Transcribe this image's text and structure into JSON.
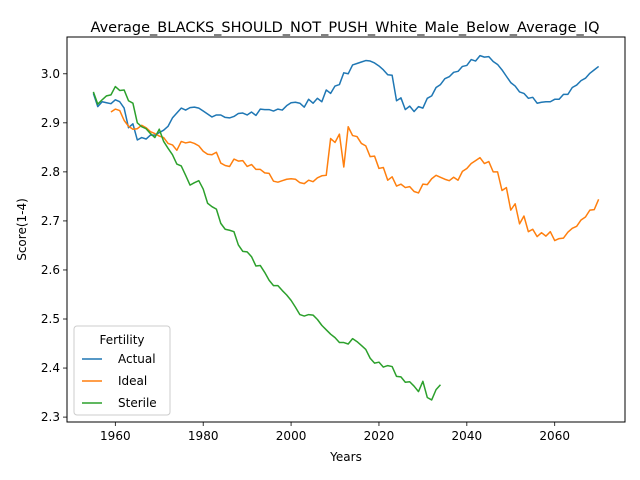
{
  "chart_data": {
    "type": "line",
    "title": "Average_BLACKS_SHOULD_NOT_PUSH_White_Male_Below_Average_IQ",
    "xlabel": "Years",
    "ylabel": "Score(1-4)",
    "xlim": [
      1949,
      2076
    ],
    "ylim": [
      2.29,
      3.075
    ],
    "xticks": [
      1960,
      1980,
      2000,
      2020,
      2040,
      2060
    ],
    "xtick_labels": [
      "1960",
      "1980",
      "2000",
      "2020",
      "2040",
      "2060"
    ],
    "yticks": [
      2.3,
      2.4,
      2.5,
      2.6,
      2.7,
      2.8,
      2.9,
      3.0
    ],
    "ytick_labels": [
      "2.3",
      "2.4",
      "2.5",
      "2.6",
      "2.7",
      "2.8",
      "2.9",
      "3.0"
    ],
    "grid": false,
    "legend": {
      "title": "Fertility",
      "placement": "bottom-left"
    },
    "series": [
      {
        "name": "Actual",
        "color": "#1f77b4",
        "x": [
          1955,
          1956,
          1957,
          1958,
          1959,
          1960,
          1961,
          1962,
          1963,
          1964,
          1965,
          1966,
          1967,
          1968,
          1969,
          1970,
          1971,
          1972,
          1973,
          1974,
          1975,
          1976,
          1977,
          1978,
          1979,
          1980,
          1981,
          1982,
          1983,
          1984,
          1985,
          1986,
          1987,
          1988,
          1989,
          1990,
          1991,
          1992,
          1993,
          1994,
          1995,
          1996,
          1997,
          1998,
          1999,
          2000,
          2001,
          2002,
          2003,
          2004,
          2005,
          2006,
          2007,
          2008,
          2009,
          2010,
          2011,
          2012,
          2013,
          2014,
          2015,
          2016,
          2017,
          2018,
          2019,
          2020,
          2021,
          2022,
          2023,
          2024,
          2025,
          2026,
          2027,
          2028,
          2029,
          2030,
          2031,
          2032,
          2033,
          2034,
          2035,
          2036,
          2037,
          2038,
          2039,
          2040,
          2041,
          2042,
          2043,
          2044,
          2045,
          2046,
          2047,
          2048,
          2049,
          2050,
          2051,
          2052,
          2053,
          2054,
          2055,
          2056,
          2057,
          2058,
          2059,
          2060,
          2061,
          2062,
          2063,
          2064,
          2065,
          2066,
          2067,
          2068,
          2069,
          2070
        ],
        "y": [
          2.96,
          2.933,
          2.943,
          2.941,
          2.939,
          2.947,
          2.943,
          2.93,
          2.89,
          2.898,
          2.865,
          2.87,
          2.867,
          2.875,
          2.875,
          2.88,
          2.885,
          2.893,
          2.91,
          2.92,
          2.93,
          2.926,
          2.931,
          2.932,
          2.93,
          2.924,
          2.918,
          2.912,
          2.916,
          2.916,
          2.911,
          2.91,
          2.913,
          2.919,
          2.92,
          2.916,
          2.922,
          2.915,
          2.928,
          2.927,
          2.927,
          2.924,
          2.928,
          2.926,
          2.935,
          2.941,
          2.942,
          2.94,
          2.932,
          2.948,
          2.94,
          2.95,
          2.943,
          2.967,
          2.96,
          2.975,
          2.978,
          3.002,
          3.0,
          3.018,
          3.021,
          3.024,
          3.027,
          3.026,
          3.022,
          3.016,
          3.008,
          2.998,
          2.997,
          2.945,
          2.951,
          2.927,
          2.934,
          2.923,
          2.933,
          2.93,
          2.95,
          2.955,
          2.972,
          2.978,
          2.99,
          2.994,
          3.003,
          3.005,
          3.015,
          3.017,
          3.029,
          3.026,
          3.037,
          3.034,
          3.035,
          3.025,
          3.019,
          3.008,
          2.995,
          2.982,
          2.975,
          2.963,
          2.96,
          2.95,
          2.952,
          2.94,
          2.942,
          2.943,
          2.943,
          2.948,
          2.948,
          2.958,
          2.958,
          2.972,
          2.977,
          2.986,
          2.991,
          3.001,
          3.008,
          3.015
        ]
      },
      {
        "name": "Ideal",
        "color": "#ff7f0e",
        "x": [
          1959,
          1960,
          1961,
          1962,
          1963,
          1964,
          1965,
          1966,
          1967,
          1968,
          1969,
          1970,
          1971,
          1972,
          1973,
          1974,
          1975,
          1976,
          1977,
          1978,
          1979,
          1980,
          1981,
          1982,
          1983,
          1984,
          1985,
          1986,
          1987,
          1988,
          1989,
          1990,
          1991,
          1992,
          1993,
          1994,
          1995,
          1996,
          1997,
          1998,
          1999,
          2000,
          2001,
          2002,
          2003,
          2004,
          2005,
          2006,
          2007,
          2008,
          2009,
          2010,
          2011,
          2012,
          2013,
          2014,
          2015,
          2016,
          2017,
          2018,
          2019,
          2020,
          2021,
          2022,
          2023,
          2024,
          2025,
          2026,
          2027,
          2028,
          2029,
          2030,
          2031,
          2032,
          2033,
          2034,
          2035,
          2036,
          2037,
          2038,
          2039,
          2040,
          2041,
          2042,
          2043,
          2044,
          2045,
          2046,
          2047,
          2048,
          2049,
          2050,
          2051,
          2052,
          2053,
          2054,
          2055,
          2056,
          2057,
          2058,
          2059,
          2060,
          2061,
          2062,
          2063,
          2064,
          2065,
          2066,
          2067,
          2068,
          2069,
          2070
        ],
        "y": [
          2.922,
          2.928,
          2.925,
          2.905,
          2.893,
          2.887,
          2.888,
          2.895,
          2.89,
          2.882,
          2.878,
          2.873,
          2.87,
          2.858,
          2.855,
          2.844,
          2.862,
          2.859,
          2.861,
          2.858,
          2.853,
          2.842,
          2.836,
          2.835,
          2.84,
          2.818,
          2.813,
          2.811,
          2.826,
          2.822,
          2.823,
          2.811,
          2.815,
          2.805,
          2.805,
          2.798,
          2.797,
          2.781,
          2.779,
          2.782,
          2.785,
          2.786,
          2.785,
          2.778,
          2.776,
          2.783,
          2.78,
          2.788,
          2.792,
          2.793,
          2.868,
          2.86,
          2.877,
          2.81,
          2.892,
          2.874,
          2.872,
          2.858,
          2.853,
          2.831,
          2.832,
          2.807,
          2.809,
          2.783,
          2.79,
          2.771,
          2.775,
          2.768,
          2.77,
          2.76,
          2.757,
          2.775,
          2.774,
          2.786,
          2.793,
          2.789,
          2.785,
          2.782,
          2.789,
          2.783,
          2.801,
          2.807,
          2.817,
          2.823,
          2.829,
          2.817,
          2.821,
          2.8,
          2.8,
          2.762,
          2.768,
          2.722,
          2.735,
          2.694,
          2.71,
          2.678,
          2.683,
          2.668,
          2.676,
          2.669,
          2.678,
          2.66,
          2.664,
          2.665,
          2.677,
          2.685,
          2.689,
          2.702,
          2.708,
          2.722,
          2.723,
          2.744
        ]
      },
      {
        "name": "Sterile",
        "color": "#2ca02c",
        "x": [
          1955,
          1956,
          1957,
          1958,
          1959,
          1960,
          1961,
          1962,
          1963,
          1964,
          1965,
          1966,
          1967,
          1968,
          1969,
          1970,
          1971,
          1972,
          1973,
          1974,
          1975,
          1976,
          1977,
          1978,
          1979,
          1980,
          1981,
          1982,
          1983,
          1984,
          1985,
          1986,
          1987,
          1988,
          1989,
          1990,
          1991,
          1992,
          1993,
          1994,
          1995,
          1996,
          1997,
          1998,
          1999,
          2000,
          2001,
          2002,
          2003,
          2004,
          2005,
          2006,
          2007,
          2008,
          2009,
          2010,
          2011,
          2012,
          2013,
          2014,
          2015,
          2016,
          2017,
          2018,
          2019,
          2020,
          2021,
          2022,
          2023,
          2024,
          2025,
          2026,
          2027,
          2028,
          2029,
          2030,
          2031,
          2032,
          2033,
          2034
        ],
        "y": [
          2.963,
          2.938,
          2.947,
          2.955,
          2.957,
          2.974,
          2.966,
          2.967,
          2.945,
          2.94,
          2.9,
          2.892,
          2.888,
          2.878,
          2.87,
          2.887,
          2.862,
          2.848,
          2.835,
          2.816,
          2.812,
          2.793,
          2.773,
          2.778,
          2.782,
          2.765,
          2.736,
          2.729,
          2.724,
          2.695,
          2.683,
          2.681,
          2.678,
          2.651,
          2.638,
          2.637,
          2.627,
          2.608,
          2.609,
          2.595,
          2.579,
          2.568,
          2.568,
          2.558,
          2.549,
          2.538,
          2.524,
          2.509,
          2.506,
          2.509,
          2.508,
          2.499,
          2.487,
          2.478,
          2.469,
          2.462,
          2.452,
          2.452,
          2.449,
          2.46,
          2.454,
          2.446,
          2.438,
          2.42,
          2.41,
          2.412,
          2.402,
          2.405,
          2.403,
          2.383,
          2.382,
          2.371,
          2.372,
          2.363,
          2.352,
          2.373,
          2.34,
          2.335,
          2.356,
          2.366
        ]
      }
    ]
  }
}
